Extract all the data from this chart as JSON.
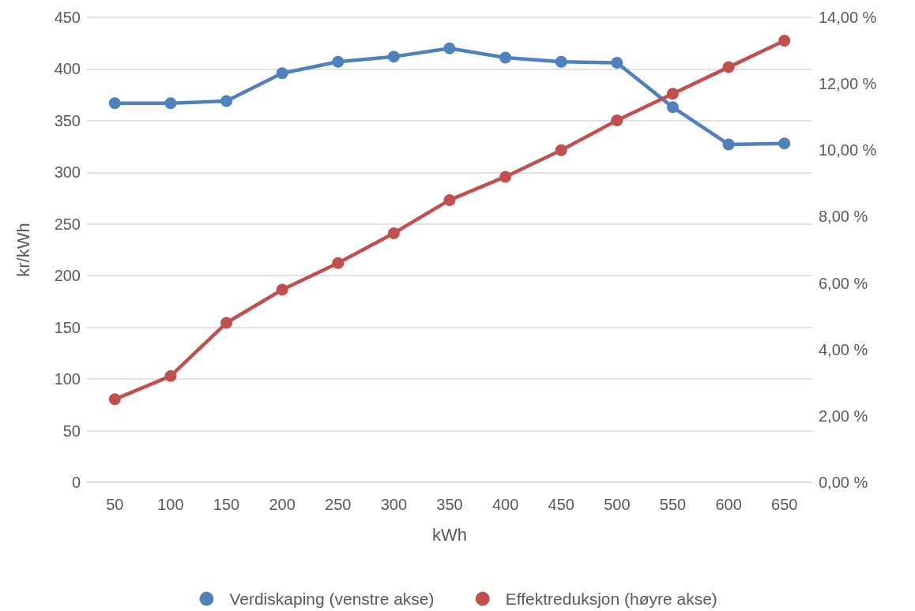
{
  "chart_data": {
    "type": "line",
    "xlabel": "kWh",
    "ylabel": "kr/kWh",
    "categories": [
      "50",
      "100",
      "150",
      "200",
      "250",
      "300",
      "350",
      "400",
      "450",
      "500",
      "550",
      "600",
      "650"
    ],
    "series": [
      {
        "name": "Verdiskaping (venstre akse)",
        "color": "#4f81bd",
        "values": [
          367,
          367,
          369,
          396,
          407,
          412,
          420,
          411,
          407,
          406,
          363,
          327,
          328
        ]
      },
      {
        "name": "Effektreduksjon (høyre akse)",
        "color": "#c0504d",
        "axis": "y2",
        "values": [
          2.5,
          3.2,
          4.8,
          5.8,
          6.6,
          7.5,
          8.5,
          9.2,
          10.0,
          10.9,
          11.7,
          12.5,
          13.3
        ]
      }
    ],
    "ylim": [
      0,
      450
    ],
    "yticks": [
      0,
      50,
      100,
      150,
      200,
      250,
      300,
      350,
      400,
      450
    ],
    "y2lim": [
      0,
      14
    ],
    "y2ticks": [
      {
        "value": 0,
        "label": "0,00 %"
      },
      {
        "value": 2,
        "label": "2,00 %"
      },
      {
        "value": 4,
        "label": "4,00 %"
      },
      {
        "value": 6,
        "label": "6,00 %"
      },
      {
        "value": 8,
        "label": "8,00 %"
      },
      {
        "value": 10,
        "label": "10,00 %"
      },
      {
        "value": 12,
        "label": "12,00 %"
      },
      {
        "value": 14,
        "label": "14,00 %"
      }
    ],
    "grid": "y",
    "legend": "bottom",
    "marker": "circle",
    "line_style": "solid"
  }
}
